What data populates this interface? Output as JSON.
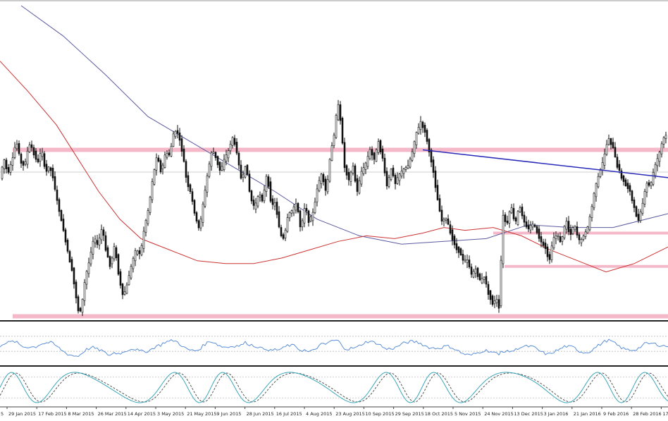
{
  "chart_data": {
    "type": "candlestick",
    "title": "",
    "x_tick_labels": [
      "29 Jan 2015",
      "17 Feb 2015",
      "8 Mar 2015",
      "26 Mar 2015",
      "14 Apr 2015",
      "3 May 2015",
      "21 May 2015",
      "9 Jun 2015",
      "28 Jun 2015",
      "16 Jul 2015",
      "4 Aug 2015",
      "23 Aug 2015",
      "10 Sep 2015",
      "29 Sep 2015",
      "18 Oct 2015",
      "5 Nov 2015",
      "24 Nov 2015",
      "13 Dec 2015",
      "3 Jan 2016",
      "21 Jan 2016",
      "9 Feb 2016",
      "28 Feb 2016",
      "17"
    ],
    "x_edge_label": "5",
    "price_path": [
      [
        0,
        0.62
      ],
      [
        4,
        0.55
      ],
      [
        10,
        0.6
      ],
      [
        16,
        0.56
      ],
      [
        22,
        0.49
      ],
      [
        28,
        0.56
      ],
      [
        34,
        0.58
      ],
      [
        40,
        0.5
      ],
      [
        46,
        0.52
      ],
      [
        52,
        0.57
      ],
      [
        58,
        0.52
      ],
      [
        64,
        0.6
      ],
      [
        70,
        0.58
      ],
      [
        74,
        0.62
      ],
      [
        78,
        0.68
      ],
      [
        84,
        0.75
      ],
      [
        90,
        0.82
      ],
      [
        96,
        0.9
      ],
      [
        100,
        0.93
      ],
      [
        104,
        1.0
      ],
      [
        108,
        1.07
      ],
      [
        112,
        1.12
      ],
      [
        116,
        1.06
      ],
      [
        120,
        0.98
      ],
      [
        126,
        0.92
      ],
      [
        132,
        0.84
      ],
      [
        138,
        0.86
      ],
      [
        144,
        0.8
      ],
      [
        150,
        0.89
      ],
      [
        156,
        0.94
      ],
      [
        162,
        0.86
      ],
      [
        168,
        0.98
      ],
      [
        174,
        1.05
      ],
      [
        180,
        1.0
      ],
      [
        186,
        0.93
      ],
      [
        192,
        0.88
      ],
      [
        198,
        0.9
      ],
      [
        204,
        0.8
      ],
      [
        210,
        0.73
      ],
      [
        216,
        0.62
      ],
      [
        222,
        0.54
      ],
      [
        228,
        0.6
      ],
      [
        234,
        0.53
      ],
      [
        240,
        0.54
      ],
      [
        246,
        0.45
      ],
      [
        252,
        0.46
      ],
      [
        258,
        0.53
      ],
      [
        264,
        0.63
      ],
      [
        270,
        0.68
      ],
      [
        276,
        0.76
      ],
      [
        282,
        0.81
      ],
      [
        288,
        0.7
      ],
      [
        294,
        0.6
      ],
      [
        300,
        0.52
      ],
      [
        306,
        0.55
      ],
      [
        312,
        0.6
      ],
      [
        318,
        0.55
      ],
      [
        324,
        0.52
      ],
      [
        330,
        0.47
      ],
      [
        336,
        0.55
      ],
      [
        342,
        0.63
      ],
      [
        348,
        0.57
      ],
      [
        354,
        0.69
      ],
      [
        360,
        0.73
      ],
      [
        366,
        0.68
      ],
      [
        372,
        0.7
      ],
      [
        378,
        0.6
      ],
      [
        384,
        0.72
      ],
      [
        390,
        0.71
      ],
      [
        396,
        0.82
      ],
      [
        402,
        0.84
      ],
      [
        408,
        0.75
      ],
      [
        414,
        0.74
      ],
      [
        420,
        0.71
      ],
      [
        426,
        0.81
      ],
      [
        432,
        0.72
      ],
      [
        438,
        0.78
      ],
      [
        444,
        0.74
      ],
      [
        450,
        0.65
      ],
      [
        456,
        0.6
      ],
      [
        462,
        0.68
      ],
      [
        468,
        0.53
      ],
      [
        474,
        0.46
      ],
      [
        478,
        0.34
      ],
      [
        482,
        0.41
      ],
      [
        488,
        0.58
      ],
      [
        494,
        0.63
      ],
      [
        500,
        0.58
      ],
      [
        506,
        0.67
      ],
      [
        512,
        0.6
      ],
      [
        518,
        0.57
      ],
      [
        524,
        0.52
      ],
      [
        530,
        0.55
      ],
      [
        536,
        0.49
      ],
      [
        542,
        0.55
      ],
      [
        548,
        0.65
      ],
      [
        554,
        0.59
      ],
      [
        560,
        0.64
      ],
      [
        566,
        0.61
      ],
      [
        572,
        0.59
      ],
      [
        578,
        0.58
      ],
      [
        584,
        0.53
      ],
      [
        590,
        0.46
      ],
      [
        596,
        0.42
      ],
      [
        602,
        0.45
      ],
      [
        608,
        0.52
      ],
      [
        614,
        0.6
      ],
      [
        620,
        0.7
      ],
      [
        626,
        0.78
      ],
      [
        632,
        0.77
      ],
      [
        638,
        0.81
      ],
      [
        644,
        0.86
      ],
      [
        650,
        0.88
      ],
      [
        656,
        0.92
      ],
      [
        662,
        0.92
      ],
      [
        668,
        0.97
      ],
      [
        674,
        0.95
      ],
      [
        680,
        0.99
      ],
      [
        686,
        0.98
      ],
      [
        692,
        1.03
      ],
      [
        698,
        1.07
      ],
      [
        704,
        1.06
      ],
      [
        708,
        1.09
      ],
      [
        712,
        0.75
      ],
      [
        718,
        0.79
      ],
      [
        724,
        0.72
      ],
      [
        730,
        0.79
      ],
      [
        736,
        0.72
      ],
      [
        742,
        0.78
      ],
      [
        748,
        0.8
      ],
      [
        754,
        0.79
      ],
      [
        760,
        0.8
      ],
      [
        766,
        0.85
      ],
      [
        772,
        0.86
      ],
      [
        778,
        0.92
      ],
      [
        784,
        0.84
      ],
      [
        790,
        0.83
      ],
      [
        796,
        0.85
      ],
      [
        802,
        0.77
      ],
      [
        808,
        0.83
      ],
      [
        814,
        0.79
      ],
      [
        820,
        0.85
      ],
      [
        826,
        0.84
      ],
      [
        832,
        0.81
      ],
      [
        838,
        0.74
      ],
      [
        844,
        0.65
      ],
      [
        850,
        0.6
      ],
      [
        856,
        0.55
      ],
      [
        862,
        0.48
      ],
      [
        868,
        0.5
      ],
      [
        874,
        0.57
      ],
      [
        880,
        0.61
      ],
      [
        886,
        0.64
      ],
      [
        892,
        0.66
      ],
      [
        898,
        0.72
      ],
      [
        904,
        0.77
      ],
      [
        910,
        0.73
      ],
      [
        916,
        0.64
      ],
      [
        922,
        0.65
      ],
      [
        928,
        0.58
      ],
      [
        934,
        0.54
      ],
      [
        940,
        0.48
      ],
      [
        948,
        0.46
      ]
    ],
    "overlays": [
      {
        "name": "",
        "kind": "moving-average",
        "color": "#5a5aa0",
        "points": [
          [
            30,
            0.0
          ],
          [
            90,
            0.11
          ],
          [
            150,
            0.25
          ],
          [
            210,
            0.4
          ],
          [
            270,
            0.49
          ],
          [
            330,
            0.58
          ],
          [
            390,
            0.67
          ],
          [
            450,
            0.77
          ],
          [
            510,
            0.83
          ],
          [
            570,
            0.86
          ],
          [
            630,
            0.85
          ],
          [
            690,
            0.84
          ],
          [
            750,
            0.79
          ],
          [
            810,
            0.8
          ],
          [
            870,
            0.8
          ],
          [
            948,
            0.75
          ]
        ]
      },
      {
        "name": "",
        "kind": "moving-average",
        "color": "#cc3333",
        "points": [
          [
            0,
            0.2
          ],
          [
            40,
            0.31
          ],
          [
            80,
            0.43
          ],
          [
            110,
            0.55
          ],
          [
            140,
            0.67
          ],
          [
            170,
            0.77
          ],
          [
            200,
            0.84
          ],
          [
            240,
            0.88
          ],
          [
            280,
            0.92
          ],
          [
            320,
            0.93
          ],
          [
            360,
            0.93
          ],
          [
            400,
            0.91
          ],
          [
            440,
            0.88
          ],
          [
            480,
            0.85
          ],
          [
            520,
            0.83
          ],
          [
            560,
            0.84
          ],
          [
            600,
            0.82
          ],
          [
            630,
            0.8
          ],
          [
            660,
            0.81
          ],
          [
            700,
            0.8
          ],
          [
            740,
            0.83
          ],
          [
            780,
            0.88
          ],
          [
            820,
            0.92
          ],
          [
            860,
            0.96
          ],
          [
            900,
            0.93
          ],
          [
            948,
            0.87
          ]
        ]
      }
    ],
    "levels": [
      {
        "kind": "resistance-band",
        "y": 0.52,
        "x_start": 18,
        "x_end": 948,
        "color": "#f4b8c8"
      },
      {
        "kind": "support-band",
        "y": 1.12,
        "x_start": 18,
        "x_end": 948,
        "color": "#f4b8c8"
      },
      {
        "kind": "mid-line",
        "y": 0.6,
        "x_start": 0,
        "x_end": 948,
        "color": "#cfcfcf"
      },
      {
        "kind": "short-band",
        "y": 0.82,
        "x_start": 700,
        "x_end": 948,
        "color": "#f4b8c8"
      },
      {
        "kind": "short-band",
        "y": 0.94,
        "x_start": 716,
        "x_end": 948,
        "color": "#f4b8c8"
      }
    ],
    "trendline": {
      "kind": "descending-trendline",
      "color": "#2a2ab8",
      "from": [
        600,
        0.52
      ],
      "to": [
        948,
        0.62
      ]
    },
    "indicator_1": {
      "kind": "rsi-like-line",
      "color": "#5b8fd6",
      "guide_color": "#b0b0b0",
      "guide_levels": [
        0.3,
        0.7
      ]
    },
    "indicator_2": {
      "kind": "stochastic-like",
      "main_color": "#3aa6b9",
      "signal_color": "#555555",
      "guide_levels": [
        0.2,
        0.8
      ]
    },
    "grid": false
  }
}
